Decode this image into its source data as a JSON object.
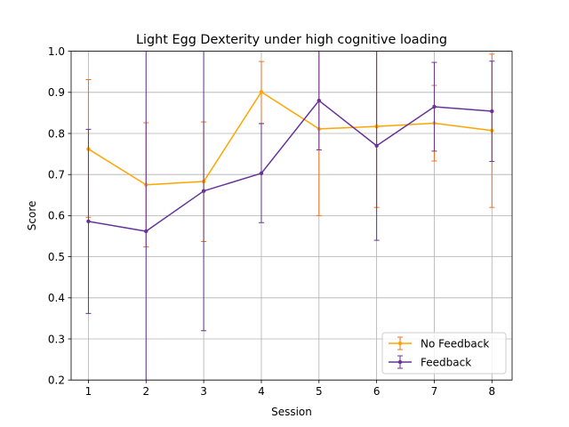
{
  "chart_data": {
    "type": "line",
    "title": "Light Egg Dexterity under high cognitive loading",
    "xlabel": "Session",
    "ylabel": "Score",
    "x": [
      1,
      2,
      3,
      4,
      5,
      6,
      7,
      8
    ],
    "xlim": [
      0.7,
      8.35
    ],
    "ylim": [
      0.2,
      1.0
    ],
    "yticks": [
      0.2,
      0.3,
      0.4,
      0.5,
      0.6,
      0.7,
      0.8,
      0.9,
      1.0
    ],
    "ytick_labels": [
      "0.2",
      "0.3",
      "0.4",
      "0.5",
      "0.6",
      "0.7",
      "0.8",
      "0.9",
      "1.0"
    ],
    "xtick_labels": [
      "1",
      "2",
      "3",
      "4",
      "5",
      "6",
      "7",
      "8"
    ],
    "grid": true,
    "legend_position": "bottom-right",
    "series": [
      {
        "name": "No Feedback",
        "color": "#ffa500",
        "errcolor": "#f07020",
        "values": [
          0.762,
          0.675,
          0.683,
          0.901,
          0.811,
          0.817,
          0.825,
          0.807
        ],
        "err_low": [
          0.596,
          0.524,
          0.537,
          0.824,
          0.6,
          0.62,
          0.733,
          0.62
        ],
        "err_high": [
          0.931,
          0.826,
          0.828,
          0.975,
          1.022,
          1.015,
          0.917,
          0.993
        ]
      },
      {
        "name": "Feedback",
        "color": "#663399",
        "errcolor": "#663399",
        "values": [
          0.586,
          0.562,
          0.66,
          0.703,
          0.88,
          0.77,
          0.865,
          0.854
        ],
        "err_low": [
          0.362,
          0.1,
          0.32,
          0.583,
          0.76,
          0.54,
          0.757,
          0.732
        ],
        "err_high": [
          0.81,
          1.024,
          1.001,
          0.824,
          1.001,
          1.0,
          0.973,
          0.976
        ]
      }
    ]
  }
}
